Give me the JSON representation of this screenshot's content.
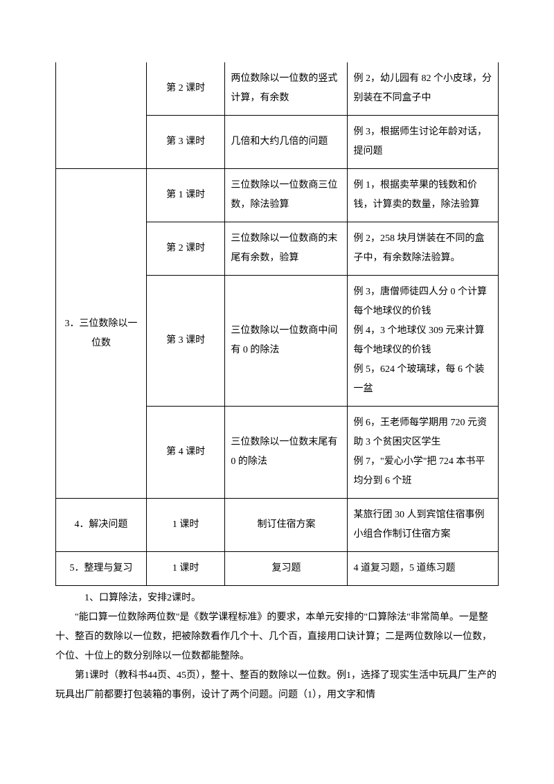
{
  "table": {
    "rows": [
      {
        "col1": "",
        "col1_rowspan": 0,
        "col2": "第 2 课时",
        "col3": "两位数除以一位数的竖式计算，有余数",
        "col4": "例 2，幼儿园有 82 个小皮球，分别装在不同盒子中"
      },
      {
        "col2": "第 3 课时",
        "col3": "几倍和大约几倍的问题",
        "col4": "例 3，根据师生讨论年龄对话，提问题"
      },
      {
        "col1": "3．三位数除以一位数",
        "col1_rowspan": 4,
        "col2": "第 1 课时",
        "col3": "三位数除以一位数商三位数，除法验算",
        "col4": "例 1，根据卖苹果的钱数和价钱，计算卖的数量，除法验算"
      },
      {
        "col2": "第 2 课时",
        "col3": "三位数除以一位数商的末尾有余数，验算",
        "col4": "例 2，258 块月饼装在不同的盒子中，有余数除法验算。"
      },
      {
        "col2": "第 3 课时",
        "col3": "三位数除以一位数商中间有 0 的除法",
        "col4": "例 3，唐僧师徒四人分 0 个计算每个地球仪的价钱\n例 4，3 个地球仪 309 元来计算每个地球仪的价钱\n例 5，624 个玻璃球，每 6 个装一盆"
      },
      {
        "col2": "第 4 课时",
        "col3": "三位数除以一位数末尾有 0 的除法",
        "col4": "例 6，王老师每学期用 720 元资助 3 个贫困灾区学生\n例 7，\"爱心小学\"把 724 本书平均分到 6 个班"
      },
      {
        "col1": "4．解决问题",
        "col1_rowspan": 1,
        "col2": "1 课时",
        "col3": "制订住宿方案",
        "col4": "某旅行团 30 人到宾馆住宿事例小组合作制订住宿方案"
      },
      {
        "col1": "5．整理与复习",
        "col1_rowspan": 1,
        "col2": "1 课时",
        "col3": "复习题",
        "col4": "4 道复习题，5 道练习题"
      }
    ],
    "col3_center_rows": [
      6,
      7
    ],
    "col1_open_top_first": true
  },
  "paragraphs": [
    "1、口算除法，安排2课时。",
    "\"能口算一位数除两位数\"是《数学课程标准》的要求，本单元安排的\"口算除法\"非常简单。一是整十、整百的数除以一位数，把被除数看作几个十、几个百，直接用口诀计算；二是两位数除以一位数，个位、十位上的数分别除以一位数都能整除。",
    "第1课时（教科书44页、45页），整十、整百的数除以一位数。例1，选择了现实生活中玩具厂生产的玩具出厂前都要打包装箱的事例，设计了两个问题。问题（1），用文字和情"
  ]
}
